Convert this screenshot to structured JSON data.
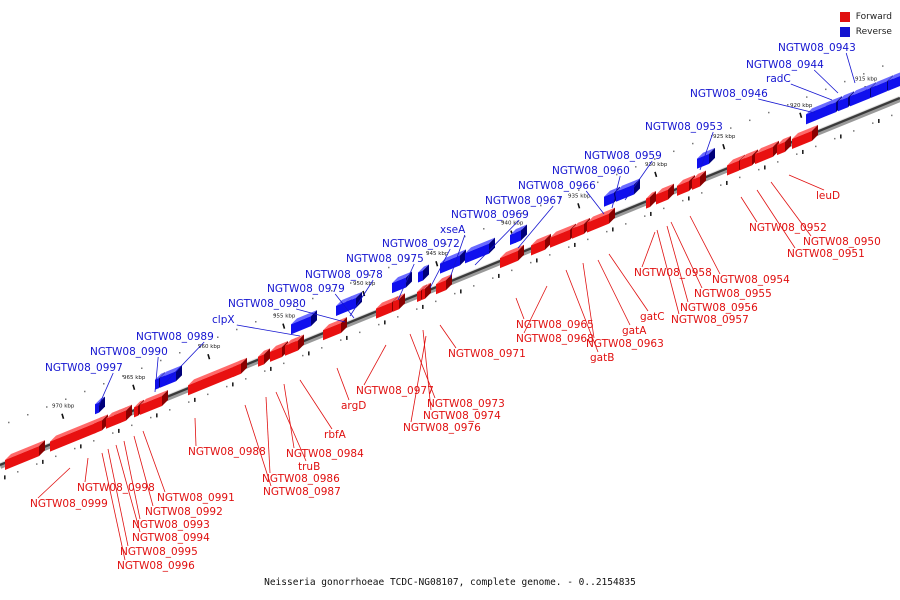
{
  "legend": {
    "forward": {
      "label": "Forward",
      "color": "#e01010"
    },
    "reverse": {
      "label": "Reverse",
      "color": "#1414d0"
    }
  },
  "caption": "Neisseria gonorrhoeae TCDC-NG08107, complete genome. - 0..2154835",
  "scale_ticks": [
    "915 kbp",
    "920 kbp",
    "925 kbp",
    "930 kbp",
    "935 kbp",
    "940 kbp",
    "945 kbp",
    "950 kbp",
    "955 kbp",
    "960 kbp",
    "965 kbp",
    "970 kbp"
  ],
  "forward_labels": [
    "leuD",
    "NGTW08_0952",
    "NGTW08_0950",
    "NGTW08_0951",
    "NGTW08_0954",
    "NGTW08_0955",
    "NGTW08_0956",
    "NGTW08_0957",
    "NGTW08_0958",
    "gatC",
    "gatA",
    "NGTW08_0963",
    "gatB",
    "NGTW08_0965",
    "NGTW08_0968",
    "NGTW08_0971",
    "NGTW08_0973",
    "NGTW08_0974",
    "NGTW08_0976",
    "NGTW08_0977",
    "argD",
    "rbfA",
    "NGTW08_0984",
    "truB",
    "NGTW08_0986",
    "NGTW08_0987",
    "NGTW08_0988",
    "NGTW08_0991",
    "NGTW08_0992",
    "NGTW08_0993",
    "NGTW08_0994",
    "NGTW08_0995",
    "NGTW08_0996",
    "NGTW08_0998",
    "NGTW08_0999"
  ],
  "reverse_labels": [
    "NGTW08_0943",
    "NGTW08_0944",
    "radC",
    "NGTW08_0946",
    "NGTW08_0953",
    "NGTW08_0959",
    "NGTW08_0960",
    "NGTW08_0966",
    "NGTW08_0967",
    "NGTW08_0969",
    "xseA",
    "NGTW08_0972",
    "NGTW08_0975",
    "NGTW08_0978",
    "NGTW08_0979",
    "NGTW08_0980",
    "clpX",
    "NGTW08_0989",
    "NGTW08_0990",
    "NGTW08_0997"
  ]
}
